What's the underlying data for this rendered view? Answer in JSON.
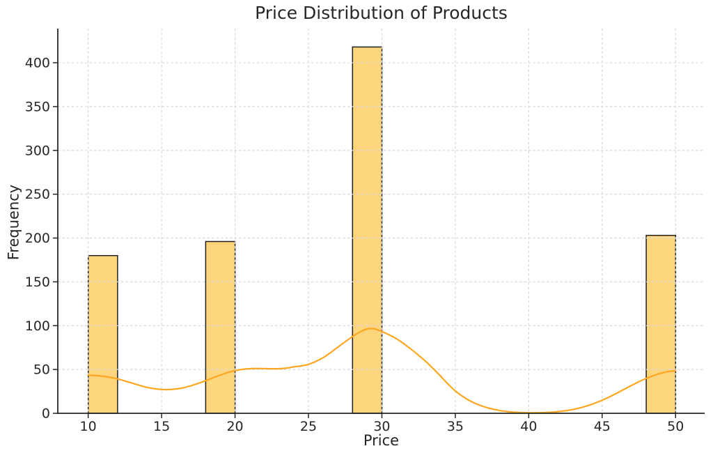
{
  "chart_data": {
    "type": "histogram+kde",
    "title": "Price Distribution of Products",
    "xlabel": "Price",
    "ylabel": "Frequency",
    "xlim": [
      7.93,
      51.98
    ],
    "ylim": [
      0,
      439
    ],
    "x_ticks": [
      10,
      15,
      20,
      25,
      30,
      35,
      40,
      45,
      50
    ],
    "y_ticks": [
      0,
      50,
      100,
      150,
      200,
      250,
      300,
      350,
      400
    ],
    "grid": {
      "visible": true,
      "style": "dashed",
      "position": "above-bars"
    },
    "bars": [
      {
        "x_start": 10,
        "x_end": 12,
        "frequency": 180
      },
      {
        "x_start": 18,
        "x_end": 20,
        "frequency": 196
      },
      {
        "x_start": 28,
        "x_end": 30,
        "frequency": 418
      },
      {
        "x_start": 48,
        "x_end": 50,
        "frequency": 203
      }
    ],
    "kde_curve": {
      "points": [
        [
          10,
          43.5
        ],
        [
          10.5,
          43.1
        ],
        [
          11,
          42.3
        ],
        [
          11.5,
          41
        ],
        [
          12,
          39.2
        ],
        [
          12.5,
          36.9
        ],
        [
          13,
          34.4
        ],
        [
          13.5,
          31.9
        ],
        [
          14,
          29.7
        ],
        [
          14.5,
          28.1
        ],
        [
          15,
          27.2
        ],
        [
          15.5,
          27.1
        ],
        [
          16,
          27.8
        ],
        [
          16.5,
          29.2
        ],
        [
          17,
          31.4
        ],
        [
          17.5,
          34.1
        ],
        [
          18,
          37.2
        ],
        [
          18.5,
          40.5
        ],
        [
          19,
          43.7
        ],
        [
          19.5,
          46.5
        ],
        [
          20,
          48.7
        ],
        [
          20.5,
          50.1
        ],
        [
          21,
          50.9
        ],
        [
          21.5,
          51.1
        ],
        [
          22,
          51
        ],
        [
          22.5,
          50.8
        ],
        [
          23,
          50.9
        ],
        [
          23.5,
          51.6
        ],
        [
          24,
          53
        ],
        [
          24.5,
          54.1
        ],
        [
          25,
          55.8
        ],
        [
          25.5,
          59.2
        ],
        [
          26,
          63.5
        ],
        [
          26.5,
          69.2
        ],
        [
          27,
          75.5
        ],
        [
          27.5,
          81.6
        ],
        [
          28,
          87.5
        ],
        [
          28.5,
          92.8
        ],
        [
          29,
          96.2
        ],
        [
          29.5,
          96.4
        ],
        [
          30,
          93.3
        ],
        [
          30.5,
          89.5
        ],
        [
          31,
          85
        ],
        [
          31.5,
          79.3
        ],
        [
          32,
          73
        ],
        [
          32.5,
          66.2
        ],
        [
          33,
          59
        ],
        [
          33.5,
          50.8
        ],
        [
          34,
          42.3
        ],
        [
          34.5,
          33.5
        ],
        [
          35,
          25.5
        ],
        [
          35.5,
          19.3
        ],
        [
          36,
          14.2
        ],
        [
          36.5,
          10.3
        ],
        [
          37,
          7.3
        ],
        [
          37.5,
          5
        ],
        [
          38,
          3.3
        ],
        [
          38.5,
          2.1
        ],
        [
          39,
          1.3
        ],
        [
          39.5,
          0.8
        ],
        [
          40,
          0.6
        ],
        [
          40.5,
          0.6
        ],
        [
          41,
          0.8
        ],
        [
          41.5,
          1.2
        ],
        [
          42,
          1.9
        ],
        [
          42.5,
          2.9
        ],
        [
          43,
          4.3
        ],
        [
          43.5,
          6.2
        ],
        [
          44,
          8.6
        ],
        [
          44.5,
          11.5
        ],
        [
          45,
          14.9
        ],
        [
          45.5,
          18.8
        ],
        [
          46,
          23
        ],
        [
          46.5,
          27.4
        ],
        [
          47,
          31.8
        ],
        [
          47.5,
          36
        ],
        [
          48,
          39.8
        ],
        [
          48.5,
          43.1
        ],
        [
          49,
          45.7
        ],
        [
          49.5,
          47.6
        ],
        [
          50,
          48.6
        ]
      ]
    },
    "colors": {
      "bar_fill": "#FCD57C",
      "bar_edge": "#1f1f1f",
      "kde_line": "#FFA620",
      "grid": "#d9d9d9",
      "axis": "#262626",
      "text": "#262626",
      "background": "#ffffff"
    }
  }
}
